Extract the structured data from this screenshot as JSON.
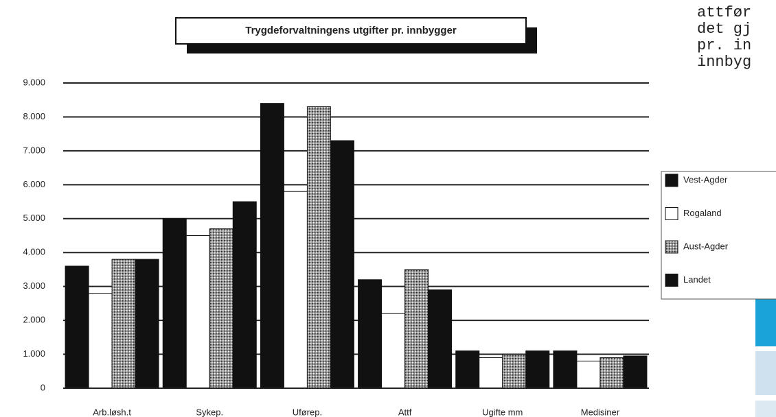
{
  "chart_data": {
    "type": "bar",
    "title": "Trygdeforvaltningens utgifter pr. innbygger",
    "categories": [
      "Arb.løsh.t",
      "Sykep.",
      "Uførep.",
      "Attf",
      "Ugifte mm",
      "Medisiner"
    ],
    "series": [
      {
        "name": "Vest-Agder",
        "color": "#111111",
        "pattern": false,
        "values": [
          3600,
          5000,
          8400,
          3200,
          1100,
          1100
        ]
      },
      {
        "name": "Rogaland",
        "color": "#ffffff",
        "pattern": false,
        "values": [
          2800,
          4500,
          5800,
          2200,
          900,
          800
        ]
      },
      {
        "name": "Aust-Agder",
        "color": "#9a9a9a",
        "pattern": true,
        "values": [
          3800,
          4700,
          8300,
          3500,
          1000,
          900
        ]
      },
      {
        "name": "Landet",
        "color": "#111111",
        "pattern": false,
        "values": [
          3800,
          5500,
          7300,
          2900,
          1100,
          950
        ]
      }
    ],
    "ylim": [
      0,
      9000
    ],
    "yticks": [
      0,
      {
        "value": 1000,
        "label": "1.000"
      },
      {
        "value": 2000,
        "label": "2.000"
      },
      {
        "value": 3000,
        "label": "3.000"
      },
      {
        "value": 4000,
        "label": "4.000"
      },
      {
        "value": 5000,
        "label": "5.000"
      },
      {
        "value": 6000,
        "label": "6.000"
      },
      {
        "value": 7000,
        "label": "7.000"
      },
      {
        "value": 8000,
        "label": "8.000"
      },
      {
        "value": 9000,
        "label": "9.000"
      }
    ],
    "grid": true,
    "legend": "right"
  },
  "side_text": [
    "attfør",
    "det gj",
    "pr. in",
    "innbyg"
  ]
}
